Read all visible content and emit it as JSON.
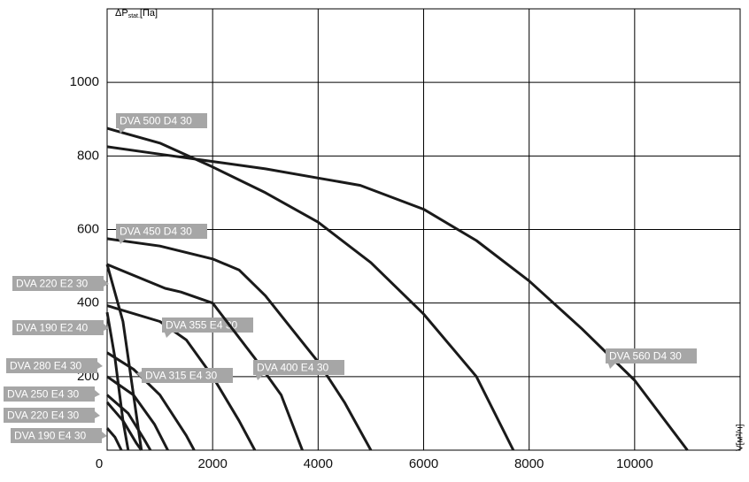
{
  "chart_data": {
    "type": "line",
    "ylabel": "ΔP",
    "ylabel_sub": "stat.",
    "ylabel_unit": "[Па]",
    "xlabel": "V[м³/ч]",
    "xlim": [
      0,
      12000
    ],
    "ylim": [
      0,
      1200
    ],
    "xticks": [
      0,
      2000,
      4000,
      6000,
      8000,
      10000
    ],
    "yticks": [
      200,
      400,
      600,
      800,
      1000
    ],
    "grid": true,
    "color": "#1a1a1a",
    "series": [
      {
        "name": "DVA 500 D4 30",
        "x": [
          0,
          1000,
          2000,
          3000,
          4000,
          5000,
          6000,
          7000,
          7700
        ],
        "values": [
          875,
          835,
          770,
          700,
          620,
          510,
          370,
          200,
          0
        ]
      },
      {
        "name": "DVA 450 D4 30",
        "x": [
          0,
          1000,
          2000,
          2500,
          3000,
          3500,
          4000,
          4500,
          5000
        ],
        "values": [
          575,
          555,
          520,
          490,
          420,
          330,
          240,
          130,
          0
        ]
      },
      {
        "name": "DVA 220 E2 30",
        "x": [
          0,
          300,
          500,
          650
        ],
        "values": [
          505,
          350,
          150,
          0
        ]
      },
      {
        "name": "DVA 190 E2 40",
        "x": [
          0,
          150,
          300,
          400
        ],
        "values": [
          375,
          250,
          80,
          0
        ]
      },
      {
        "name": "DVA 355 E4 30",
        "x": [
          0,
          1000,
          1500,
          2000,
          2500,
          2800
        ],
        "values": [
          393,
          350,
          300,
          200,
          80,
          0
        ]
      },
      {
        "name": "DVA 280 E4 30",
        "x": [
          0,
          500,
          900,
          1150
        ],
        "values": [
          200,
          150,
          70,
          0
        ]
      },
      {
        "name": "DVA 315 E4 30",
        "x": [
          0,
          500,
          1000,
          1500,
          1650
        ],
        "values": [
          265,
          220,
          150,
          40,
          0
        ]
      },
      {
        "name": "DVA 400 E4 30",
        "x": [
          0,
          1100,
          1400,
          2000,
          2800,
          3300,
          3700
        ],
        "values": [
          505,
          440,
          430,
          400,
          250,
          150,
          0
        ]
      },
      {
        "name": "DVA 250 E4 30",
        "x": [
          0,
          400,
          700,
          820
        ],
        "values": [
          150,
          100,
          30,
          0
        ]
      },
      {
        "name": "DVA 220 E4 30",
        "x": [
          0,
          300,
          550,
          650
        ],
        "values": [
          130,
          80,
          20,
          0
        ]
      },
      {
        "name": "DVA 190 E4 30",
        "x": [
          0,
          150,
          270
        ],
        "values": [
          60,
          35,
          0
        ]
      },
      {
        "name": "DVA 560 D4 30",
        "x": [
          0,
          1000,
          2000,
          3000,
          4000,
          4800,
          6000,
          7000,
          8000,
          9000,
          10000,
          11000
        ],
        "values": [
          825,
          805,
          785,
          765,
          740,
          720,
          655,
          570,
          460,
          330,
          190,
          0
        ]
      }
    ]
  }
}
